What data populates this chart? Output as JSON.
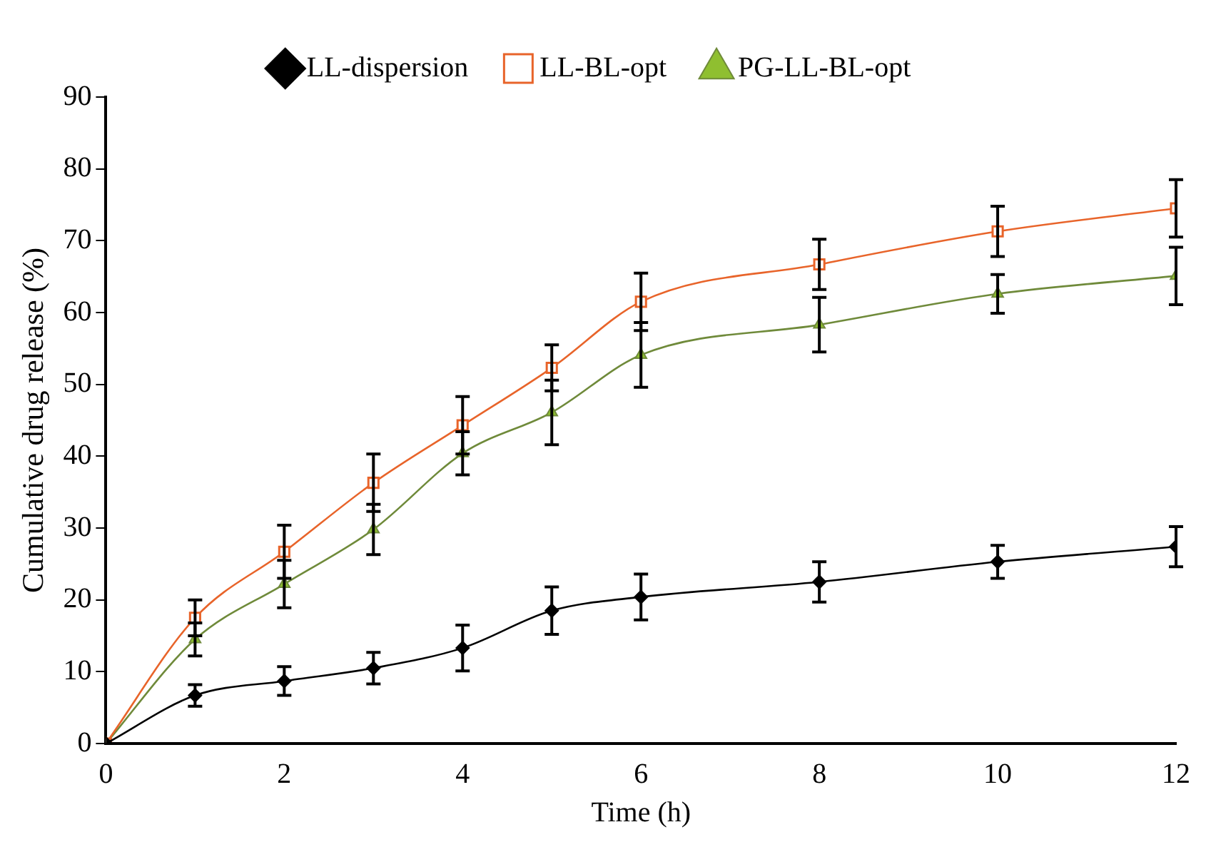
{
  "chart_data": {
    "type": "line",
    "xlabel": "Time (h)",
    "ylabel": "Cumulative drug release (%)",
    "x": [
      0,
      1,
      2,
      3,
      4,
      5,
      6,
      8,
      10,
      12
    ],
    "xlim": [
      0,
      12
    ],
    "xticks": [
      0,
      2,
      4,
      6,
      8,
      10,
      12
    ],
    "ylim": [
      0,
      90
    ],
    "yticks": [
      0,
      10,
      20,
      30,
      40,
      50,
      60,
      70,
      80,
      90
    ],
    "grid": false,
    "legend": "top",
    "line_style": "solid",
    "series": [
      {
        "name": "LL-dispersion",
        "color": "#000000",
        "marker": "diamond",
        "values": [
          0,
          6.7,
          8.7,
          10.5,
          13.3,
          18.5,
          20.4,
          22.5,
          25.3,
          27.4
        ],
        "errors": [
          null,
          1.5,
          2,
          2.2,
          3.2,
          3.3,
          3.2,
          2.8,
          2.3,
          2.8
        ]
      },
      {
        "name": "LL-BL-opt",
        "color": "#e8642a",
        "marker": "square",
        "values": [
          0,
          17.5,
          26.7,
          36.3,
          44.3,
          52.3,
          61.5,
          66.7,
          71.3,
          74.5
        ],
        "errors": [
          null,
          2.5,
          3.7,
          4,
          4,
          3.2,
          4,
          3.5,
          3.5,
          4
        ]
      },
      {
        "name": "PG-LL-BL-opt",
        "color": "#6f8a3a",
        "marker": "triangle",
        "values": [
          0,
          14.5,
          22.2,
          29.8,
          40.4,
          46.1,
          54.1,
          58.3,
          62.6,
          65.1
        ],
        "errors": [
          null,
          2.3,
          3.3,
          3.5,
          3,
          4.5,
          4.5,
          3.8,
          2.7,
          4
        ]
      }
    ]
  }
}
